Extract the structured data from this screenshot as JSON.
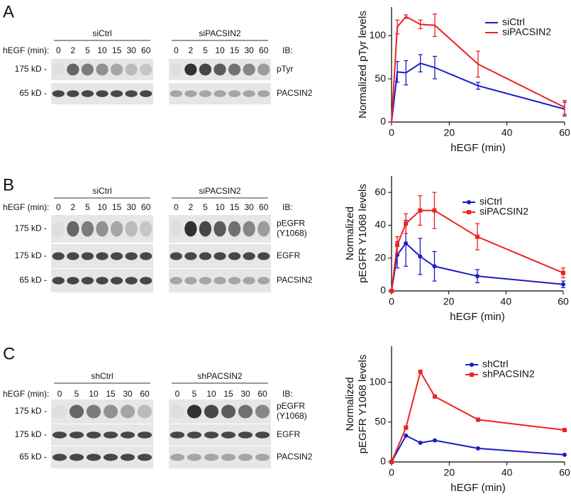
{
  "panels": [
    {
      "letter": "A",
      "time_label": "hEGF (min):",
      "ib_label": "IB:",
      "groups": [
        {
          "name": "siCtrl",
          "times": [
            0,
            2,
            5,
            10,
            15,
            30,
            60
          ]
        },
        {
          "name": "siPACSIN2",
          "times": [
            0,
            2,
            5,
            10,
            15,
            30,
            60
          ]
        }
      ],
      "rows": [
        {
          "marker": "175 kD -",
          "ib": [
            "pTyr"
          ]
        },
        {
          "marker": "65 kD -",
          "ib": [
            "PACSIN2"
          ]
        }
      ]
    },
    {
      "letter": "B",
      "time_label": "hEGF (min):",
      "ib_label": "IB:",
      "groups": [
        {
          "name": "siCtrl",
          "times": [
            0,
            2,
            5,
            10,
            15,
            30,
            60
          ]
        },
        {
          "name": "siPACSIN2",
          "times": [
            0,
            2,
            5,
            10,
            15,
            30,
            60
          ]
        }
      ],
      "rows": [
        {
          "marker": "175 kD -",
          "ib": [
            "pEGFR",
            "(Y1068)"
          ]
        },
        {
          "marker": "175 kD -",
          "ib": [
            "EGFR"
          ]
        },
        {
          "marker": "65 kD -",
          "ib": [
            "PACSIN2"
          ]
        }
      ]
    },
    {
      "letter": "C",
      "time_label": "hEGF (min):",
      "ib_label": "IB:",
      "groups": [
        {
          "name": "shCtrl",
          "times": [
            0,
            5,
            10,
            15,
            30,
            60
          ]
        },
        {
          "name": "shPACSIN2",
          "times": [
            0,
            5,
            10,
            15,
            30,
            60
          ]
        }
      ],
      "rows": [
        {
          "marker": "175 kD -",
          "ib": [
            "pEGFR",
            "(Y1068)"
          ]
        },
        {
          "marker": "175 kD -",
          "ib": [
            "EGFR"
          ]
        },
        {
          "marker": "65 kD -",
          "ib": [
            "PACSIN2"
          ]
        }
      ]
    }
  ],
  "chart_data": [
    {
      "type": "line",
      "ylabel": [
        "Normalized pTyr levels"
      ],
      "xlabel": "hEGF (min)",
      "x": [
        0,
        2,
        5,
        10,
        15,
        30,
        60
      ],
      "xlim": [
        0,
        60
      ],
      "xticks": [
        0,
        20,
        40,
        60
      ],
      "ylim": [
        0,
        133
      ],
      "yticks": [
        0,
        50,
        100
      ],
      "legend": "upper right",
      "series": [
        {
          "name": "siCtrl",
          "color": "#1c1cc8",
          "values": [
            0,
            58,
            57,
            68,
            63,
            42,
            15
          ],
          "errors": [
            0,
            12,
            14,
            10,
            13,
            4,
            8
          ]
        },
        {
          "name": "siPACSIN2",
          "color": "#ee2222",
          "values": [
            0,
            110,
            122,
            113,
            112,
            67,
            17
          ],
          "errors": [
            0,
            8,
            2,
            5,
            13,
            15,
            8
          ]
        }
      ]
    },
    {
      "type": "line",
      "ylabel": [
        "Normalized",
        "pEGFR Y1068 levels"
      ],
      "xlabel": "hEGF (min)",
      "x": [
        0,
        2,
        5,
        10,
        15,
        30,
        60
      ],
      "xlim": [
        0,
        60
      ],
      "xticks": [
        0,
        20,
        40,
        60
      ],
      "ylim": [
        0,
        70
      ],
      "yticks": [
        0,
        20,
        40,
        60
      ],
      "legend": "upper right",
      "series": [
        {
          "name": "siCtrl",
          "color": "#1c1cc8",
          "marker": "circle",
          "values": [
            0,
            22,
            29,
            21,
            15,
            9,
            4
          ],
          "errors": [
            0,
            8,
            14,
            11,
            9,
            4,
            2
          ]
        },
        {
          "name": "siPACSIN2",
          "color": "#ee2222",
          "marker": "square",
          "values": [
            0,
            28,
            41,
            49,
            49,
            33,
            11
          ],
          "errors": [
            0,
            5,
            6,
            9,
            11,
            8,
            3
          ]
        }
      ]
    },
    {
      "type": "line",
      "ylabel": [
        "Normalized",
        "pEGFR Y1068 levels"
      ],
      "xlabel": "hEGF (min)",
      "x": [
        0,
        5,
        10,
        15,
        30,
        60
      ],
      "xlim": [
        0,
        60
      ],
      "xticks": [
        0,
        20,
        40,
        60
      ],
      "ylim": [
        0,
        145
      ],
      "yticks": [
        0,
        50,
        100
      ],
      "legend": "upper right",
      "series": [
        {
          "name": "shCtrl",
          "color": "#1c1cc8",
          "marker": "circle",
          "values": [
            0,
            33,
            24,
            27,
            17,
            9
          ]
        },
        {
          "name": "shPACSIN2",
          "color": "#ee2222",
          "marker": "square",
          "values": [
            0,
            43,
            113,
            82,
            53,
            40
          ]
        }
      ]
    }
  ]
}
